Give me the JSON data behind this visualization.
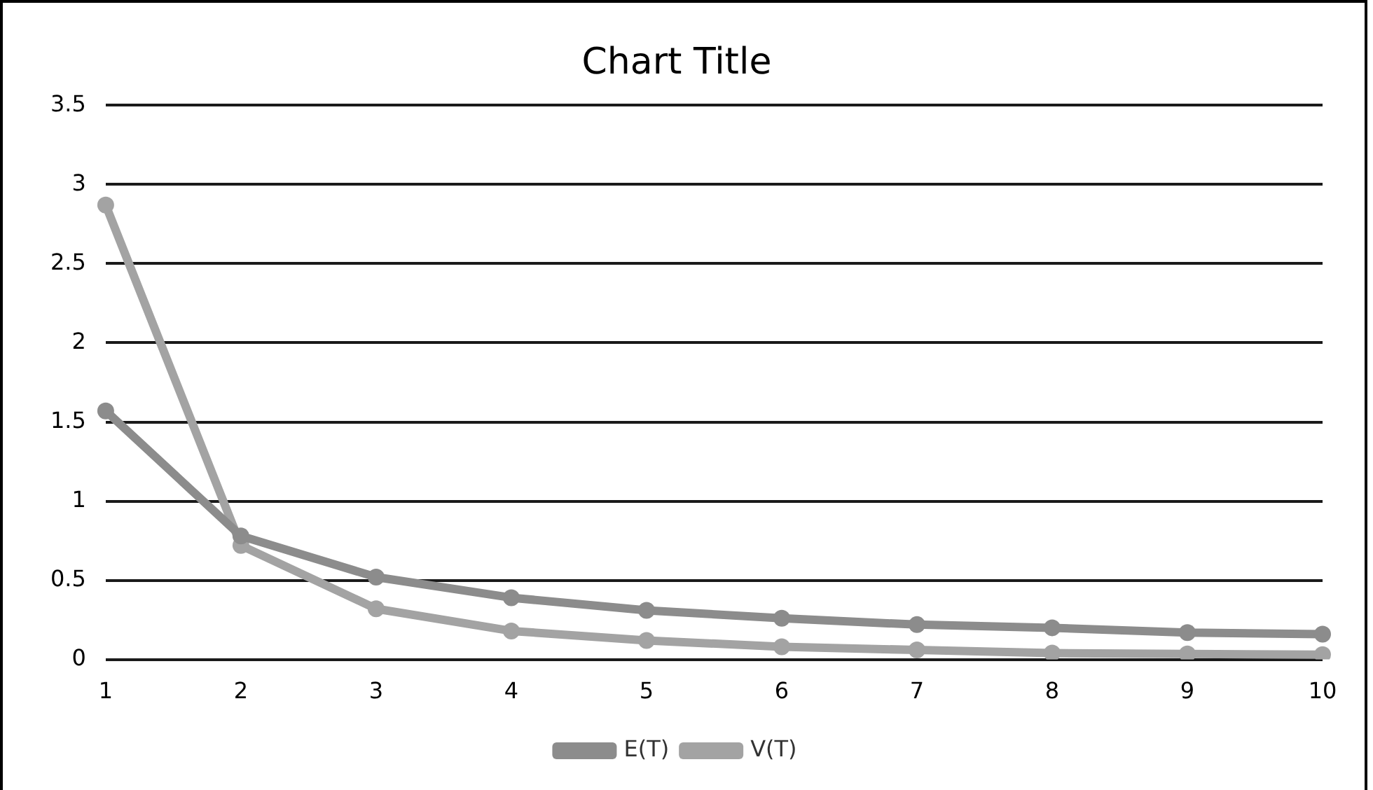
{
  "chart_data": {
    "type": "line",
    "title": "Chart Title",
    "categories": [
      "1",
      "2",
      "3",
      "4",
      "5",
      "6",
      "7",
      "8",
      "9",
      "10"
    ],
    "series": [
      {
        "name": "E(T)",
        "color": "#8c8c8c",
        "values": [
          1.57,
          0.78,
          0.52,
          0.39,
          0.31,
          0.26,
          0.22,
          0.2,
          0.17,
          0.16
        ]
      },
      {
        "name": "V(T)",
        "color": "#a3a3a3",
        "values": [
          2.87,
          0.72,
          0.32,
          0.18,
          0.12,
          0.08,
          0.06,
          0.04,
          0.035,
          0.03
        ]
      }
    ],
    "ylim": [
      0,
      3.5
    ],
    "yticks": [
      0,
      0.5,
      1,
      1.5,
      2,
      2.5,
      3,
      3.5
    ],
    "grid": "y",
    "legend": "bottom",
    "marker": "circle",
    "line_style": "solid"
  }
}
